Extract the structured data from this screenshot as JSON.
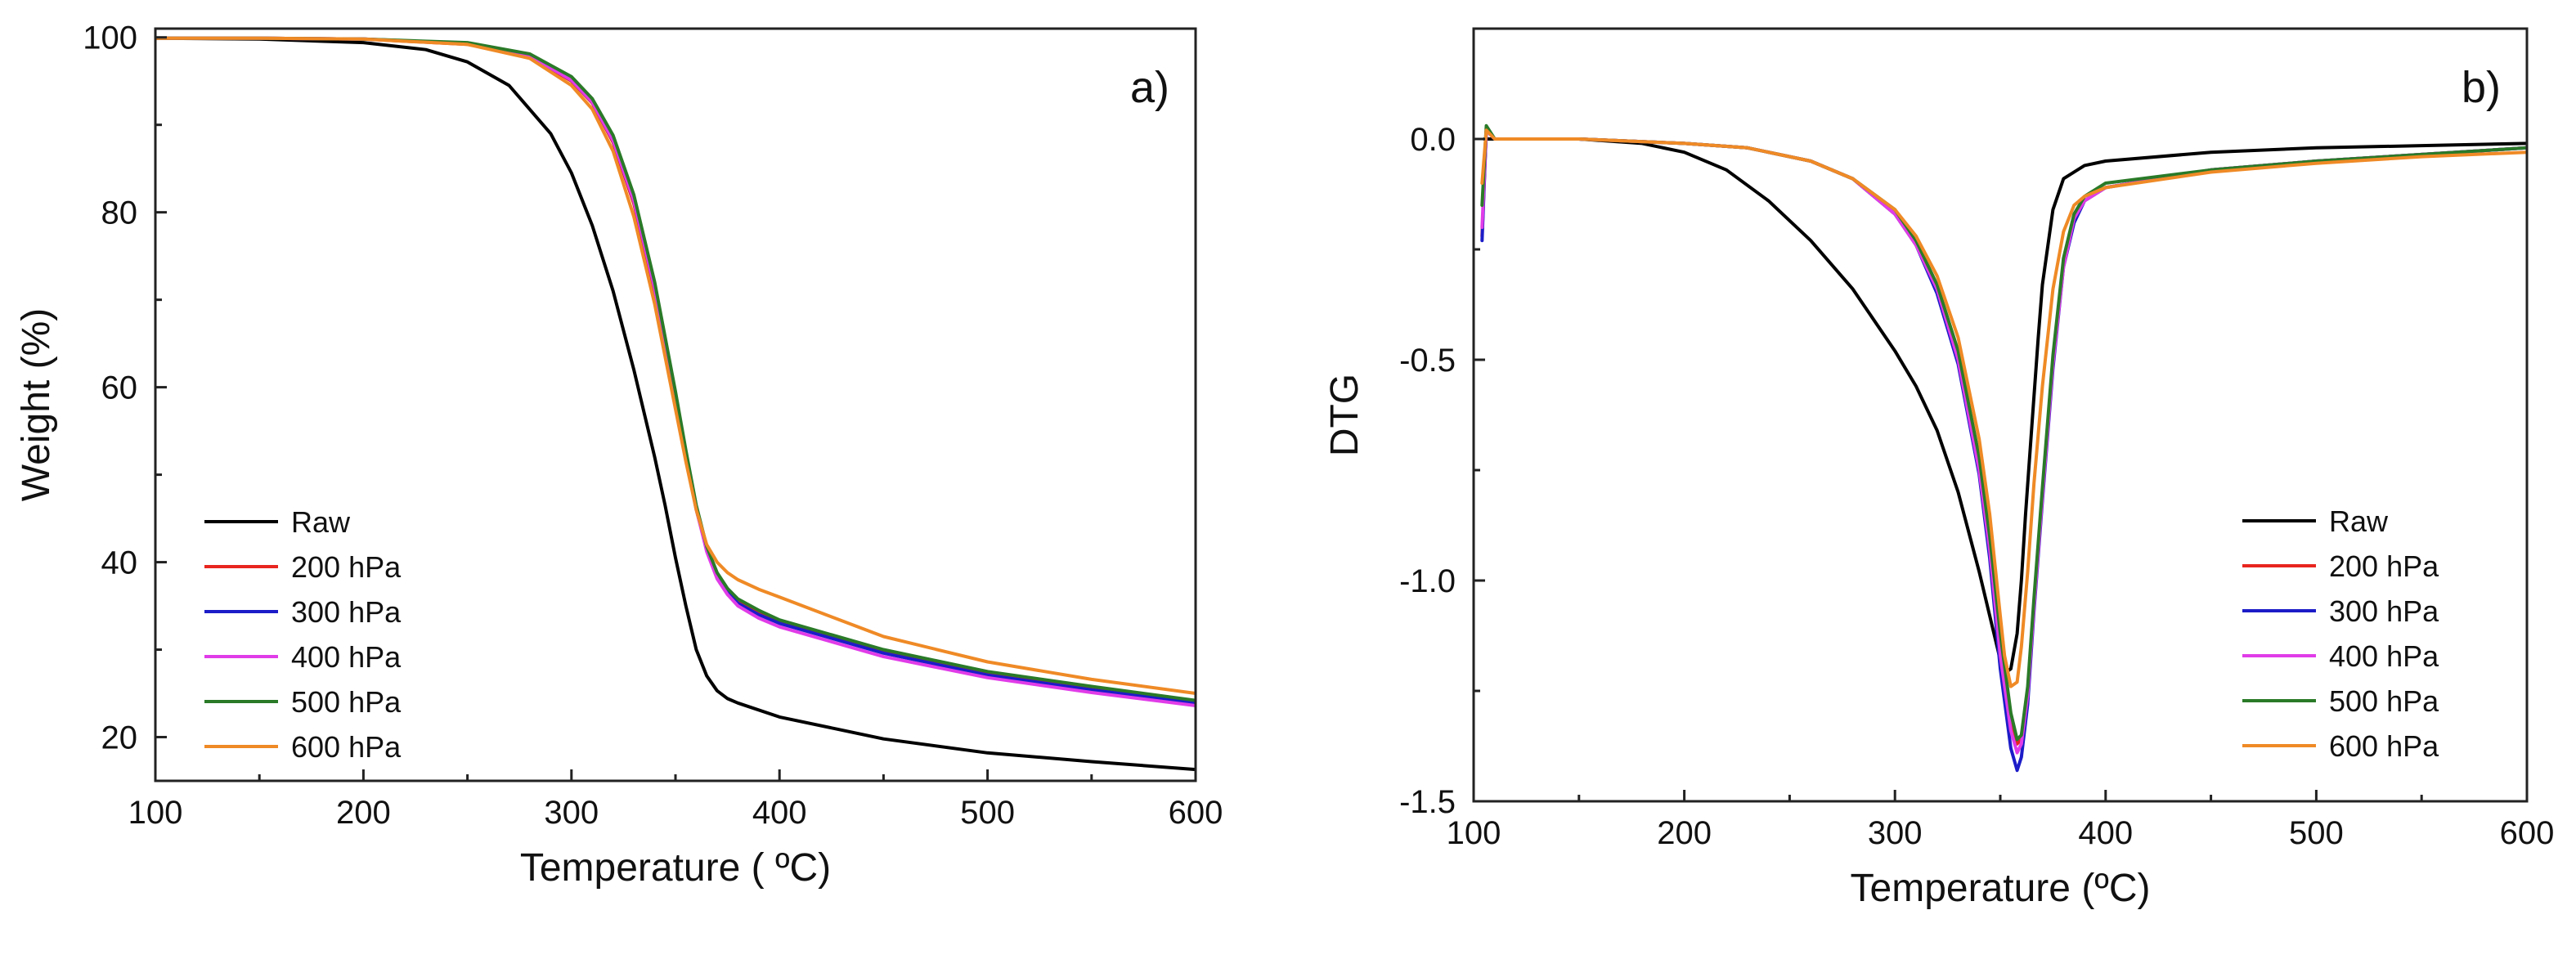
{
  "chart_data": [
    {
      "type": "line",
      "panel": "a)",
      "title": "",
      "xlabel": "Temperature ( ºC)",
      "ylabel": "Weight (%)",
      "xlim": [
        100,
        600
      ],
      "ylim": [
        15,
        101
      ],
      "xticks": [
        100,
        200,
        300,
        400,
        500,
        600
      ],
      "yticks": [
        20,
        40,
        60,
        80,
        100
      ],
      "ytick_labels": [
        "20",
        "40",
        "60",
        "80",
        "100"
      ],
      "legend_position": "bottom-left",
      "grid": false,
      "series": [
        {
          "name": "Raw",
          "color": "#000000",
          "x": [
            100,
            150,
            200,
            230,
            250,
            270,
            290,
            300,
            310,
            320,
            330,
            340,
            345,
            350,
            355,
            360,
            365,
            370,
            375,
            380,
            400,
            450,
            500,
            550,
            600
          ],
          "y": [
            99.9,
            99.8,
            99.4,
            98.6,
            97.2,
            94.5,
            89.0,
            84.5,
            78.5,
            71.0,
            62.0,
            52.0,
            46.5,
            40.5,
            35.0,
            30.0,
            27.0,
            25.3,
            24.4,
            23.9,
            22.3,
            19.8,
            18.2,
            17.2,
            16.3
          ]
        },
        {
          "name": "200 hPa",
          "color": "#e8251f",
          "x": [
            100,
            150,
            200,
            250,
            280,
            300,
            310,
            320,
            330,
            340,
            350,
            355,
            360,
            365,
            370,
            375,
            380,
            390,
            400,
            450,
            500,
            550,
            600
          ],
          "y": [
            99.9,
            99.9,
            99.8,
            99.2,
            97.8,
            95.0,
            92.5,
            88.0,
            81.0,
            71.0,
            58.5,
            52.0,
            46.0,
            41.5,
            38.5,
            36.8,
            35.6,
            34.3,
            33.2,
            29.8,
            27.3,
            25.6,
            24.0
          ]
        },
        {
          "name": "300 hPa",
          "color": "#1c1cc8",
          "x": [
            100,
            150,
            200,
            250,
            280,
            300,
            310,
            320,
            330,
            340,
            350,
            355,
            360,
            365,
            370,
            375,
            380,
            390,
            400,
            450,
            500,
            550,
            600
          ],
          "y": [
            99.9,
            99.9,
            99.8,
            99.3,
            97.9,
            95.1,
            92.6,
            88.2,
            81.3,
            71.3,
            58.8,
            52.2,
            46.1,
            41.4,
            38.3,
            36.6,
            35.3,
            34.0,
            33.0,
            29.6,
            27.1,
            25.4,
            23.9
          ]
        },
        {
          "name": "400 hPa",
          "color": "#e03ce8",
          "x": [
            100,
            150,
            200,
            250,
            280,
            300,
            310,
            320,
            330,
            340,
            350,
            355,
            360,
            365,
            370,
            375,
            380,
            390,
            400,
            450,
            500,
            550,
            600
          ],
          "y": [
            99.9,
            99.9,
            99.8,
            99.3,
            97.9,
            95.1,
            92.6,
            88.2,
            81.3,
            71.3,
            58.8,
            52.2,
            46.1,
            41.2,
            38.1,
            36.3,
            35.0,
            33.6,
            32.6,
            29.2,
            26.8,
            25.1,
            23.6
          ]
        },
        {
          "name": "500 hPa",
          "color": "#2a7a28",
          "x": [
            100,
            150,
            200,
            250,
            280,
            300,
            310,
            320,
            330,
            340,
            350,
            355,
            360,
            365,
            370,
            375,
            380,
            390,
            400,
            450,
            500,
            550,
            600
          ],
          "y": [
            99.9,
            99.9,
            99.8,
            99.4,
            98.1,
            95.5,
            93.0,
            88.8,
            82.0,
            72.0,
            59.5,
            52.8,
            46.5,
            41.8,
            38.8,
            37.0,
            35.8,
            34.5,
            33.4,
            30.0,
            27.5,
            25.8,
            24.2
          ]
        },
        {
          "name": "600 hPa",
          "color": "#ef8a26",
          "x": [
            100,
            150,
            200,
            250,
            280,
            300,
            310,
            320,
            330,
            340,
            350,
            355,
            360,
            365,
            370,
            375,
            380,
            390,
            400,
            450,
            500,
            550,
            600
          ],
          "y": [
            99.9,
            99.9,
            99.8,
            99.2,
            97.6,
            94.5,
            91.8,
            87.0,
            79.5,
            69.5,
            57.5,
            51.5,
            46.0,
            42.0,
            40.0,
            38.8,
            38.0,
            36.9,
            36.0,
            31.5,
            28.6,
            26.6,
            25.0
          ]
        }
      ]
    },
    {
      "type": "line",
      "panel": "b)",
      "title": "",
      "xlabel": "Temperature (ºC)",
      "ylabel": "DTG",
      "xlim": [
        100,
        600
      ],
      "ylim": [
        -1.5,
        0.25
      ],
      "xticks": [
        100,
        200,
        300,
        400,
        500,
        600
      ],
      "yticks": [
        -1.5,
        -1.0,
        -0.5,
        0.0
      ],
      "ytick_labels": [
        "-1.5",
        "-1.0",
        "-0.5",
        "0.0"
      ],
      "legend_position": "bottom-right",
      "grid": false,
      "series": [
        {
          "name": "Raw",
          "color": "#000000",
          "x": [
            105,
            120,
            150,
            180,
            200,
            220,
            240,
            260,
            280,
            300,
            310,
            320,
            330,
            340,
            345,
            350,
            352,
            355,
            358,
            360,
            362,
            365,
            368,
            370,
            375,
            380,
            390,
            400,
            450,
            500,
            550,
            600
          ],
          "y": [
            0.0,
            0.0,
            0.0,
            -0.01,
            -0.03,
            -0.07,
            -0.14,
            -0.23,
            -0.34,
            -0.48,
            -0.56,
            -0.66,
            -0.8,
            -0.98,
            -1.08,
            -1.18,
            -1.21,
            -1.2,
            -1.12,
            -1.0,
            -0.85,
            -0.65,
            -0.45,
            -0.33,
            -0.16,
            -0.09,
            -0.06,
            -0.05,
            -0.03,
            -0.02,
            -0.015,
            -0.01
          ]
        },
        {
          "name": "200 hPa",
          "color": "#e8251f",
          "x": [
            104,
            106,
            110,
            150,
            200,
            230,
            260,
            280,
            300,
            310,
            320,
            330,
            340,
            345,
            350,
            355,
            358,
            360,
            363,
            366,
            370,
            375,
            380,
            385,
            390,
            400,
            450,
            500,
            550,
            600
          ],
          "y": [
            -0.22,
            0.02,
            0.0,
            0.0,
            -0.01,
            -0.02,
            -0.05,
            -0.09,
            -0.17,
            -0.24,
            -0.34,
            -0.5,
            -0.74,
            -0.92,
            -1.15,
            -1.32,
            -1.37,
            -1.36,
            -1.25,
            -1.05,
            -0.8,
            -0.5,
            -0.28,
            -0.18,
            -0.14,
            -0.11,
            -0.07,
            -0.05,
            -0.035,
            -0.02
          ]
        },
        {
          "name": "300 hPa",
          "color": "#1c1cc8",
          "x": [
            104,
            106,
            110,
            150,
            200,
            230,
            260,
            280,
            300,
            310,
            320,
            330,
            340,
            345,
            350,
            355,
            358,
            360,
            363,
            366,
            370,
            375,
            380,
            385,
            390,
            400,
            450,
            500,
            550,
            600
          ],
          "y": [
            -0.23,
            0.02,
            0.0,
            0.0,
            -0.01,
            -0.02,
            -0.05,
            -0.09,
            -0.17,
            -0.24,
            -0.35,
            -0.51,
            -0.76,
            -0.95,
            -1.2,
            -1.38,
            -1.43,
            -1.4,
            -1.28,
            -1.07,
            -0.82,
            -0.52,
            -0.29,
            -0.19,
            -0.14,
            -0.11,
            -0.07,
            -0.05,
            -0.035,
            -0.02
          ]
        },
        {
          "name": "400 hPa",
          "color": "#e03ce8",
          "x": [
            104,
            106,
            110,
            150,
            200,
            230,
            260,
            280,
            300,
            310,
            320,
            330,
            340,
            345,
            350,
            355,
            358,
            360,
            363,
            366,
            370,
            375,
            380,
            385,
            390,
            400,
            450,
            500,
            550,
            600
          ],
          "y": [
            -0.2,
            0.02,
            0.0,
            0.0,
            -0.01,
            -0.02,
            -0.05,
            -0.09,
            -0.17,
            -0.24,
            -0.34,
            -0.5,
            -0.75,
            -0.93,
            -1.17,
            -1.34,
            -1.39,
            -1.37,
            -1.26,
            -1.06,
            -0.81,
            -0.51,
            -0.29,
            -0.18,
            -0.14,
            -0.11,
            -0.07,
            -0.05,
            -0.035,
            -0.02
          ]
        },
        {
          "name": "500 hPa",
          "color": "#2a7a28",
          "x": [
            104,
            106,
            110,
            150,
            200,
            230,
            260,
            280,
            300,
            310,
            320,
            330,
            340,
            345,
            350,
            355,
            358,
            360,
            363,
            366,
            370,
            375,
            380,
            385,
            390,
            400,
            450,
            500,
            550,
            600
          ],
          "y": [
            -0.15,
            0.03,
            0.0,
            0.0,
            -0.01,
            -0.02,
            -0.05,
            -0.09,
            -0.16,
            -0.23,
            -0.33,
            -0.48,
            -0.72,
            -0.9,
            -1.12,
            -1.3,
            -1.36,
            -1.35,
            -1.24,
            -1.04,
            -0.79,
            -0.49,
            -0.27,
            -0.17,
            -0.13,
            -0.1,
            -0.07,
            -0.05,
            -0.035,
            -0.02
          ]
        },
        {
          "name": "600 hPa",
          "color": "#ef8a26",
          "x": [
            104,
            106,
            110,
            150,
            200,
            230,
            260,
            280,
            300,
            310,
            320,
            330,
            340,
            345,
            350,
            352,
            355,
            358,
            360,
            363,
            366,
            370,
            375,
            380,
            385,
            390,
            400,
            450,
            500,
            550,
            600
          ],
          "y": [
            -0.1,
            0.02,
            0.0,
            0.0,
            -0.01,
            -0.02,
            -0.05,
            -0.09,
            -0.16,
            -0.22,
            -0.31,
            -0.45,
            -0.68,
            -0.85,
            -1.08,
            -1.17,
            -1.24,
            -1.23,
            -1.15,
            -0.98,
            -0.78,
            -0.56,
            -0.34,
            -0.21,
            -0.15,
            -0.13,
            -0.11,
            -0.075,
            -0.055,
            -0.04,
            -0.03
          ]
        }
      ]
    }
  ]
}
